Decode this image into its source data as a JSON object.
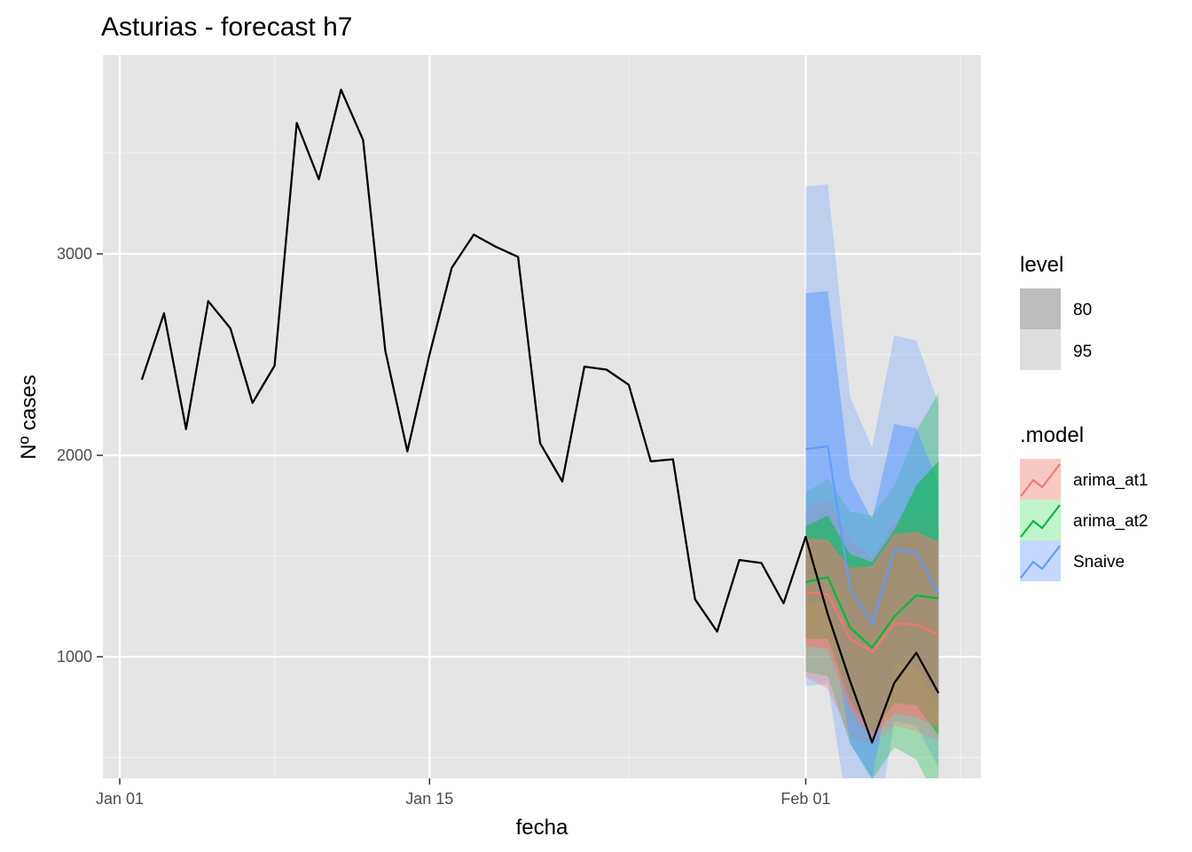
{
  "chart_data": {
    "type": "line",
    "title": "Asturias - forecast h7",
    "xlabel": "fecha",
    "ylabel": "Nº cases",
    "x_ticks": [
      "Jan 01",
      "Jan 15",
      "Feb 01"
    ],
    "y_ticks": [
      1000,
      2000,
      3000
    ],
    "x_range": [
      "2021-12-01",
      "2022-02-07"
    ],
    "ylim": [
      420,
      4000
    ],
    "grid": true,
    "background": "#e5e5e5",
    "history": {
      "name": "",
      "color": "#000000",
      "x": [
        "2022-01-02",
        "2022-01-03",
        "2022-01-04",
        "2022-01-05",
        "2022-01-06",
        "2022-01-07",
        "2022-01-08",
        "2022-01-09",
        "2022-01-10",
        "2022-01-11",
        "2022-01-12",
        "2022-01-13",
        "2022-01-14",
        "2022-01-15",
        "2022-01-16",
        "2022-01-17",
        "2022-01-18",
        "2022-01-19",
        "2022-01-20",
        "2022-01-21",
        "2022-01-22",
        "2022-01-23",
        "2022-01-24",
        "2022-01-25",
        "2022-01-26",
        "2022-01-27",
        "2022-01-28",
        "2022-01-29",
        "2022-01-30",
        "2022-01-31",
        "2022-02-01",
        "2022-02-02",
        "2022-02-03",
        "2022-02-04",
        "2022-02-05",
        "2022-02-06",
        "2022-02-07"
      ],
      "y": [
        2375,
        2705,
        2130,
        2765,
        2630,
        2260,
        2445,
        3650,
        3370,
        3815,
        3565,
        2520,
        2020,
        2500,
        2930,
        3095,
        3035,
        2985,
        2060,
        1870,
        2440,
        2425,
        2350,
        1970,
        1980,
        1285,
        1125,
        1480,
        1465,
        1265,
        1595,
        1210,
        880,
        575,
        870,
        1020,
        820
      ]
    },
    "forecast_x": [
      "2022-02-01",
      "2022-02-02",
      "2022-02-03",
      "2022-02-04",
      "2022-02-05",
      "2022-02-06",
      "2022-02-07"
    ],
    "forecasts": [
      {
        "name": "Snaive",
        "color": "#619cff",
        "mean": [
          2030,
          2045,
          1335,
          1165,
          1535,
          1515,
          1310
        ],
        "lower80": [
          1260,
          1275,
          570,
          400,
          970,
          955,
          750
        ],
        "upper80": [
          2805,
          2815,
          1890,
          1680,
          2155,
          2135,
          1860
        ],
        "lower95": [
          855,
          865,
          160,
          0,
          680,
          660,
          450
        ],
        "upper95": [
          3335,
          3345,
          2290,
          2040,
          2595,
          2570,
          2255
        ]
      },
      {
        "name": "arima_at2",
        "color": "#00ba38",
        "mean": [
          1370,
          1395,
          1145,
          1045,
          1200,
          1305,
          1290
        ],
        "lower80": [
          1090,
          1090,
          780,
          620,
          770,
          760,
          610
        ],
        "upper80": [
          1650,
          1700,
          1510,
          1470,
          1630,
          1850,
          1970
        ],
        "lower95": [
          925,
          905,
          570,
          390,
          550,
          490,
          270
        ],
        "upper95": [
          1815,
          1885,
          1720,
          1700,
          1850,
          2120,
          2310
        ]
      },
      {
        "name": "arima_at1",
        "color": "#f8766d",
        "mean": [
          1320,
          1310,
          1090,
          1025,
          1165,
          1160,
          1110
        ],
        "lower80": [
          1050,
          1040,
          740,
          600,
          720,
          700,
          650
        ],
        "upper80": [
          1590,
          1580,
          1440,
          1450,
          1610,
          1620,
          1570
        ],
        "lower95": [
          900,
          840,
          600,
          560,
          660,
          630,
          580
        ],
        "upper95": [
          1740,
          1780,
          1580,
          1490,
          1670,
          1690,
          1640
        ]
      }
    ],
    "legend": {
      "placement": "right",
      "level_title": "level",
      "levels": [
        "80",
        "95"
      ],
      "level_colors": [
        "#bdbdbd",
        "#dedede"
      ],
      "model_title": ".model",
      "models": [
        {
          "name": "arima_at1",
          "color": "#f8766d",
          "fill": "#f8c8c4"
        },
        {
          "name": "arima_at2",
          "color": "#00ba38",
          "fill": "#c0f5cc"
        },
        {
          "name": "Snaive",
          "color": "#619cff",
          "fill": "#c5d8ff"
        }
      ]
    }
  }
}
